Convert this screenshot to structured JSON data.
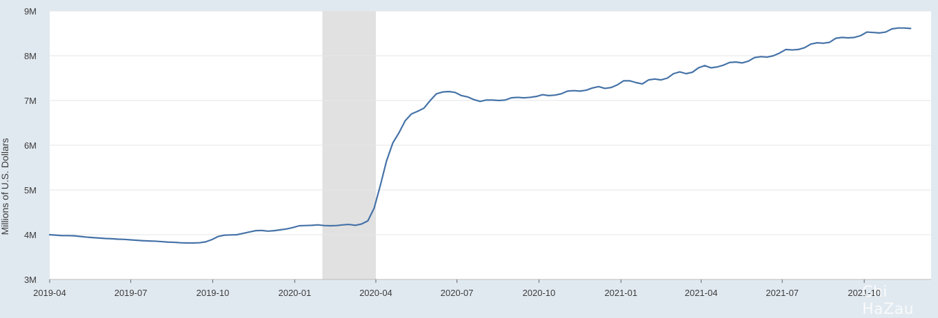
{
  "chart_data": {
    "type": "line",
    "title": "",
    "ylabel": "Millions of U.S. Dollars",
    "xlabel": "",
    "ylim": [
      3000000,
      9000000
    ],
    "xlim": [
      "2019-04-01",
      "2021-12-15"
    ],
    "y_ticks": [
      {
        "value": 3000000,
        "label": "3M"
      },
      {
        "value": 4000000,
        "label": "4M"
      },
      {
        "value": 5000000,
        "label": "5M"
      },
      {
        "value": 6000000,
        "label": "6M"
      },
      {
        "value": 7000000,
        "label": "7M"
      },
      {
        "value": 8000000,
        "label": "8M"
      },
      {
        "value": 9000000,
        "label": "9M"
      }
    ],
    "x_ticks": [
      {
        "date": "2019-04-01",
        "label": "2019-04"
      },
      {
        "date": "2019-07-01",
        "label": "2019-07"
      },
      {
        "date": "2019-10-01",
        "label": "2019-10"
      },
      {
        "date": "2020-01-01",
        "label": "2020-01"
      },
      {
        "date": "2020-04-01",
        "label": "2020-04"
      },
      {
        "date": "2020-07-01",
        "label": "2020-07"
      },
      {
        "date": "2020-10-01",
        "label": "2020-10"
      },
      {
        "date": "2021-01-01",
        "label": "2021-01"
      },
      {
        "date": "2021-04-01",
        "label": "2021-04"
      },
      {
        "date": "2021-07-01",
        "label": "2021-07"
      },
      {
        "date": "2021-10-01",
        "label": "2021-10"
      }
    ],
    "recession_shading": {
      "start": "2020-02-01",
      "end": "2020-04-01"
    },
    "grid": true,
    "colors": {
      "line": "#4572a7",
      "recession": "#e1e1e1",
      "background": "#e1e9f0",
      "plot": "#ffffff",
      "grid": "#e6e6e6"
    },
    "series": [
      {
        "values": [
          [
            "2019-04-01",
            4000000
          ],
          [
            "2019-04-08",
            3990000
          ],
          [
            "2019-04-15",
            3980000
          ],
          [
            "2019-04-22",
            3980000
          ],
          [
            "2019-04-29",
            3975000
          ],
          [
            "2019-05-06",
            3960000
          ],
          [
            "2019-05-13",
            3945000
          ],
          [
            "2019-05-20",
            3935000
          ],
          [
            "2019-05-27",
            3925000
          ],
          [
            "2019-06-03",
            3915000
          ],
          [
            "2019-06-10",
            3910000
          ],
          [
            "2019-06-17",
            3900000
          ],
          [
            "2019-06-24",
            3895000
          ],
          [
            "2019-07-01",
            3885000
          ],
          [
            "2019-07-08",
            3875000
          ],
          [
            "2019-07-15",
            3865000
          ],
          [
            "2019-07-22",
            3860000
          ],
          [
            "2019-07-29",
            3855000
          ],
          [
            "2019-08-05",
            3845000
          ],
          [
            "2019-08-12",
            3835000
          ],
          [
            "2019-08-19",
            3830000
          ],
          [
            "2019-08-26",
            3820000
          ],
          [
            "2019-09-02",
            3815000
          ],
          [
            "2019-09-09",
            3815000
          ],
          [
            "2019-09-16",
            3820000
          ],
          [
            "2019-09-23",
            3840000
          ],
          [
            "2019-09-30",
            3890000
          ],
          [
            "2019-10-07",
            3960000
          ],
          [
            "2019-10-14",
            3990000
          ],
          [
            "2019-10-21",
            3995000
          ],
          [
            "2019-10-28",
            4000000
          ],
          [
            "2019-11-04",
            4030000
          ],
          [
            "2019-11-11",
            4060000
          ],
          [
            "2019-11-18",
            4090000
          ],
          [
            "2019-11-25",
            4095000
          ],
          [
            "2019-12-02",
            4080000
          ],
          [
            "2019-12-09",
            4090000
          ],
          [
            "2019-12-16",
            4110000
          ],
          [
            "2019-12-23",
            4130000
          ],
          [
            "2019-12-30",
            4160000
          ],
          [
            "2020-01-06",
            4200000
          ],
          [
            "2020-01-13",
            4205000
          ],
          [
            "2020-01-20",
            4210000
          ],
          [
            "2020-01-27",
            4220000
          ],
          [
            "2020-02-03",
            4205000
          ],
          [
            "2020-02-10",
            4200000
          ],
          [
            "2020-02-17",
            4205000
          ],
          [
            "2020-02-24",
            4220000
          ],
          [
            "2020-03-02",
            4230000
          ],
          [
            "2020-03-09",
            4210000
          ],
          [
            "2020-03-16",
            4240000
          ],
          [
            "2020-03-23",
            4310000
          ],
          [
            "2020-03-30",
            4590000
          ],
          [
            "2020-04-06",
            5100000
          ],
          [
            "2020-04-13",
            5650000
          ],
          [
            "2020-04-20",
            6050000
          ],
          [
            "2020-04-27",
            6280000
          ],
          [
            "2020-05-04",
            6550000
          ],
          [
            "2020-05-11",
            6700000
          ],
          [
            "2020-05-18",
            6760000
          ],
          [
            "2020-05-25",
            6830000
          ],
          [
            "2020-06-01",
            7000000
          ],
          [
            "2020-06-08",
            7150000
          ],
          [
            "2020-06-15",
            7190000
          ],
          [
            "2020-06-22",
            7200000
          ],
          [
            "2020-06-29",
            7180000
          ],
          [
            "2020-07-06",
            7110000
          ],
          [
            "2020-07-13",
            7080000
          ],
          [
            "2020-07-20",
            7020000
          ],
          [
            "2020-07-27",
            6980000
          ],
          [
            "2020-08-03",
            7010000
          ],
          [
            "2020-08-10",
            7010000
          ],
          [
            "2020-08-17",
            7000000
          ],
          [
            "2020-08-24",
            7010000
          ],
          [
            "2020-08-31",
            7060000
          ],
          [
            "2020-09-07",
            7070000
          ],
          [
            "2020-09-14",
            7060000
          ],
          [
            "2020-09-21",
            7070000
          ],
          [
            "2020-09-28",
            7090000
          ],
          [
            "2020-10-05",
            7130000
          ],
          [
            "2020-10-12",
            7110000
          ],
          [
            "2020-10-19",
            7120000
          ],
          [
            "2020-10-26",
            7150000
          ],
          [
            "2020-11-02",
            7210000
          ],
          [
            "2020-11-09",
            7220000
          ],
          [
            "2020-11-16",
            7210000
          ],
          [
            "2020-11-23",
            7230000
          ],
          [
            "2020-11-30",
            7280000
          ],
          [
            "2020-12-07",
            7310000
          ],
          [
            "2020-12-14",
            7270000
          ],
          [
            "2020-12-21",
            7290000
          ],
          [
            "2020-12-28",
            7350000
          ],
          [
            "2021-01-04",
            7440000
          ],
          [
            "2021-01-11",
            7440000
          ],
          [
            "2021-01-18",
            7400000
          ],
          [
            "2021-01-25",
            7370000
          ],
          [
            "2021-02-01",
            7460000
          ],
          [
            "2021-02-08",
            7480000
          ],
          [
            "2021-02-15",
            7460000
          ],
          [
            "2021-02-22",
            7500000
          ],
          [
            "2021-03-01",
            7600000
          ],
          [
            "2021-03-08",
            7640000
          ],
          [
            "2021-03-15",
            7600000
          ],
          [
            "2021-03-22",
            7630000
          ],
          [
            "2021-03-29",
            7730000
          ],
          [
            "2021-04-05",
            7780000
          ],
          [
            "2021-04-12",
            7730000
          ],
          [
            "2021-04-19",
            7750000
          ],
          [
            "2021-04-26",
            7790000
          ],
          [
            "2021-05-03",
            7850000
          ],
          [
            "2021-05-10",
            7860000
          ],
          [
            "2021-05-17",
            7840000
          ],
          [
            "2021-05-24",
            7880000
          ],
          [
            "2021-05-31",
            7960000
          ],
          [
            "2021-06-07",
            7980000
          ],
          [
            "2021-06-14",
            7970000
          ],
          [
            "2021-06-21",
            8000000
          ],
          [
            "2021-06-28",
            8060000
          ],
          [
            "2021-07-05",
            8140000
          ],
          [
            "2021-07-12",
            8130000
          ],
          [
            "2021-07-19",
            8140000
          ],
          [
            "2021-07-26",
            8180000
          ],
          [
            "2021-08-02",
            8260000
          ],
          [
            "2021-08-09",
            8290000
          ],
          [
            "2021-08-16",
            8280000
          ],
          [
            "2021-08-23",
            8300000
          ],
          [
            "2021-08-30",
            8390000
          ],
          [
            "2021-09-06",
            8410000
          ],
          [
            "2021-09-13",
            8400000
          ],
          [
            "2021-09-20",
            8410000
          ],
          [
            "2021-09-27",
            8450000
          ],
          [
            "2021-10-04",
            8530000
          ],
          [
            "2021-10-11",
            8520000
          ],
          [
            "2021-10-18",
            8510000
          ],
          [
            "2021-10-25",
            8530000
          ],
          [
            "2021-11-01",
            8600000
          ],
          [
            "2021-11-08",
            8620000
          ],
          [
            "2021-11-15",
            8620000
          ],
          [
            "2021-11-22",
            8610000
          ]
        ]
      }
    ]
  },
  "watermark": "Chi HaZau"
}
